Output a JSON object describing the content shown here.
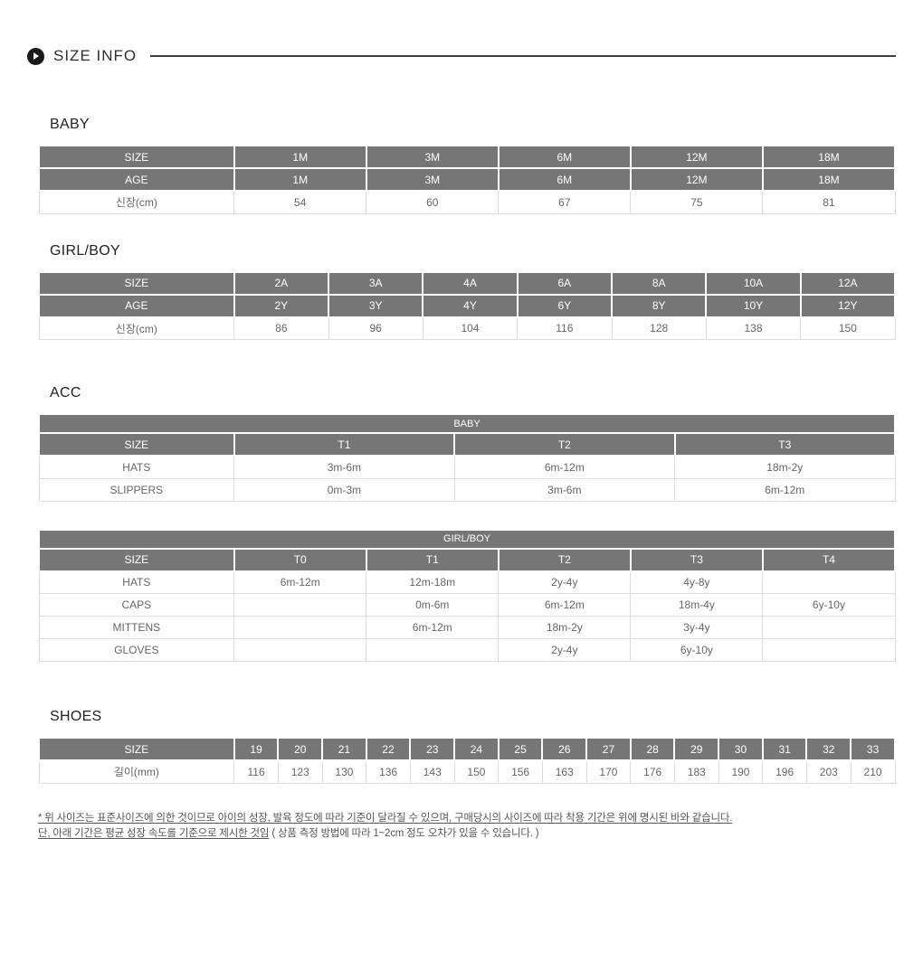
{
  "colors": {
    "header_bg": "#767676",
    "header_text": "#ffffff",
    "body_text": "#666666",
    "cell_border": "#dddddd",
    "title_text": "#222222",
    "footnote_text": "#555555",
    "accent_dark": "#1a1a1a"
  },
  "header": {
    "title": "SIZE INFO",
    "icon": "play-circle-icon"
  },
  "baby": {
    "title": "BABY",
    "table": {
      "first_col_pct": 22.8,
      "rows": [
        {
          "header": true,
          "cells": [
            "SIZE",
            "1M",
            "3M",
            "6M",
            "12M",
            "18M"
          ]
        },
        {
          "header": true,
          "cells": [
            "AGE",
            "1M",
            "3M",
            "6M",
            "12M",
            "18M"
          ]
        },
        {
          "header": false,
          "cells": [
            "신장(cm)",
            "54",
            "60",
            "67",
            "75",
            "81"
          ]
        }
      ]
    }
  },
  "girlboy": {
    "title": "GIRL/BOY",
    "table": {
      "first_col_pct": 22.8,
      "rows": [
        {
          "header": true,
          "cells": [
            "SIZE",
            "2A",
            "3A",
            "4A",
            "6A",
            "8A",
            "10A",
            "12A"
          ]
        },
        {
          "header": true,
          "cells": [
            "AGE",
            "2Y",
            "3Y",
            "4Y",
            "6Y",
            "8Y",
            "10Y",
            "12Y"
          ]
        },
        {
          "header": false,
          "cells": [
            "신장(cm)",
            "86",
            "96",
            "104",
            "116",
            "128",
            "138",
            "150"
          ]
        }
      ]
    }
  },
  "acc": {
    "title": "ACC",
    "baby_table": {
      "first_col_pct": 22.8,
      "band": "BABY",
      "rows": [
        {
          "header": true,
          "cells": [
            "SIZE",
            "T1",
            "T2",
            "T3"
          ]
        },
        {
          "header": false,
          "cells": [
            "HATS",
            "3m-6m",
            "6m-12m",
            "18m-2y"
          ]
        },
        {
          "header": false,
          "cells": [
            "SLIPPERS",
            "0m-3m",
            "3m-6m",
            "6m-12m"
          ]
        }
      ]
    },
    "girlboy_table": {
      "first_col_pct": 22.8,
      "band": "GIRL/BOY",
      "rows": [
        {
          "header": true,
          "cells": [
            "SIZE",
            "T0",
            "T1",
            "T2",
            "T3",
            "T4"
          ]
        },
        {
          "header": false,
          "cells": [
            "HATS",
            "6m-12m",
            "12m-18m",
            "2y-4y",
            "4y-8y",
            ""
          ]
        },
        {
          "header": false,
          "cells": [
            "CAPS",
            "",
            "0m-6m",
            "6m-12m",
            "18m-4y",
            "6y-10y"
          ]
        },
        {
          "header": false,
          "cells": [
            "MITTENS",
            "",
            "6m-12m",
            "18m-2y",
            "3y-4y",
            ""
          ]
        },
        {
          "header": false,
          "cells": [
            "GLOVES",
            "",
            "",
            "2y-4y",
            "6y-10y",
            ""
          ]
        }
      ]
    }
  },
  "shoes": {
    "title": "SHOES",
    "table": {
      "first_col_pct": 22.8,
      "rows": [
        {
          "header": true,
          "cells": [
            "SIZE",
            "19",
            "20",
            "21",
            "22",
            "23",
            "24",
            "25",
            "26",
            "27",
            "28",
            "29",
            "30",
            "31",
            "32",
            "33"
          ]
        },
        {
          "header": false,
          "cells": [
            "길이(mm)",
            "116",
            "123",
            "130",
            "136",
            "143",
            "150",
            "156",
            "163",
            "170",
            "176",
            "183",
            "190",
            "196",
            "203",
            "210"
          ]
        }
      ]
    }
  },
  "footnote": {
    "line1": "* 위 사이즈는 표준사이즈에 의한 것이므로 아이의 성장, 발육 정도에 따라 기준이 달라질 수 있으며, 구매당시의 사이즈에 따라 착용 기간은 위에 명시된 바와 같습니다.",
    "line2_underlined": "단, 아래 기간은 평균 성장 속도를 기준으로 제시한 것임",
    "line2_plain": " ( 상품 측정 방법에 따라 1~2cm 정도 오차가 있을 수 있습니다. )"
  }
}
